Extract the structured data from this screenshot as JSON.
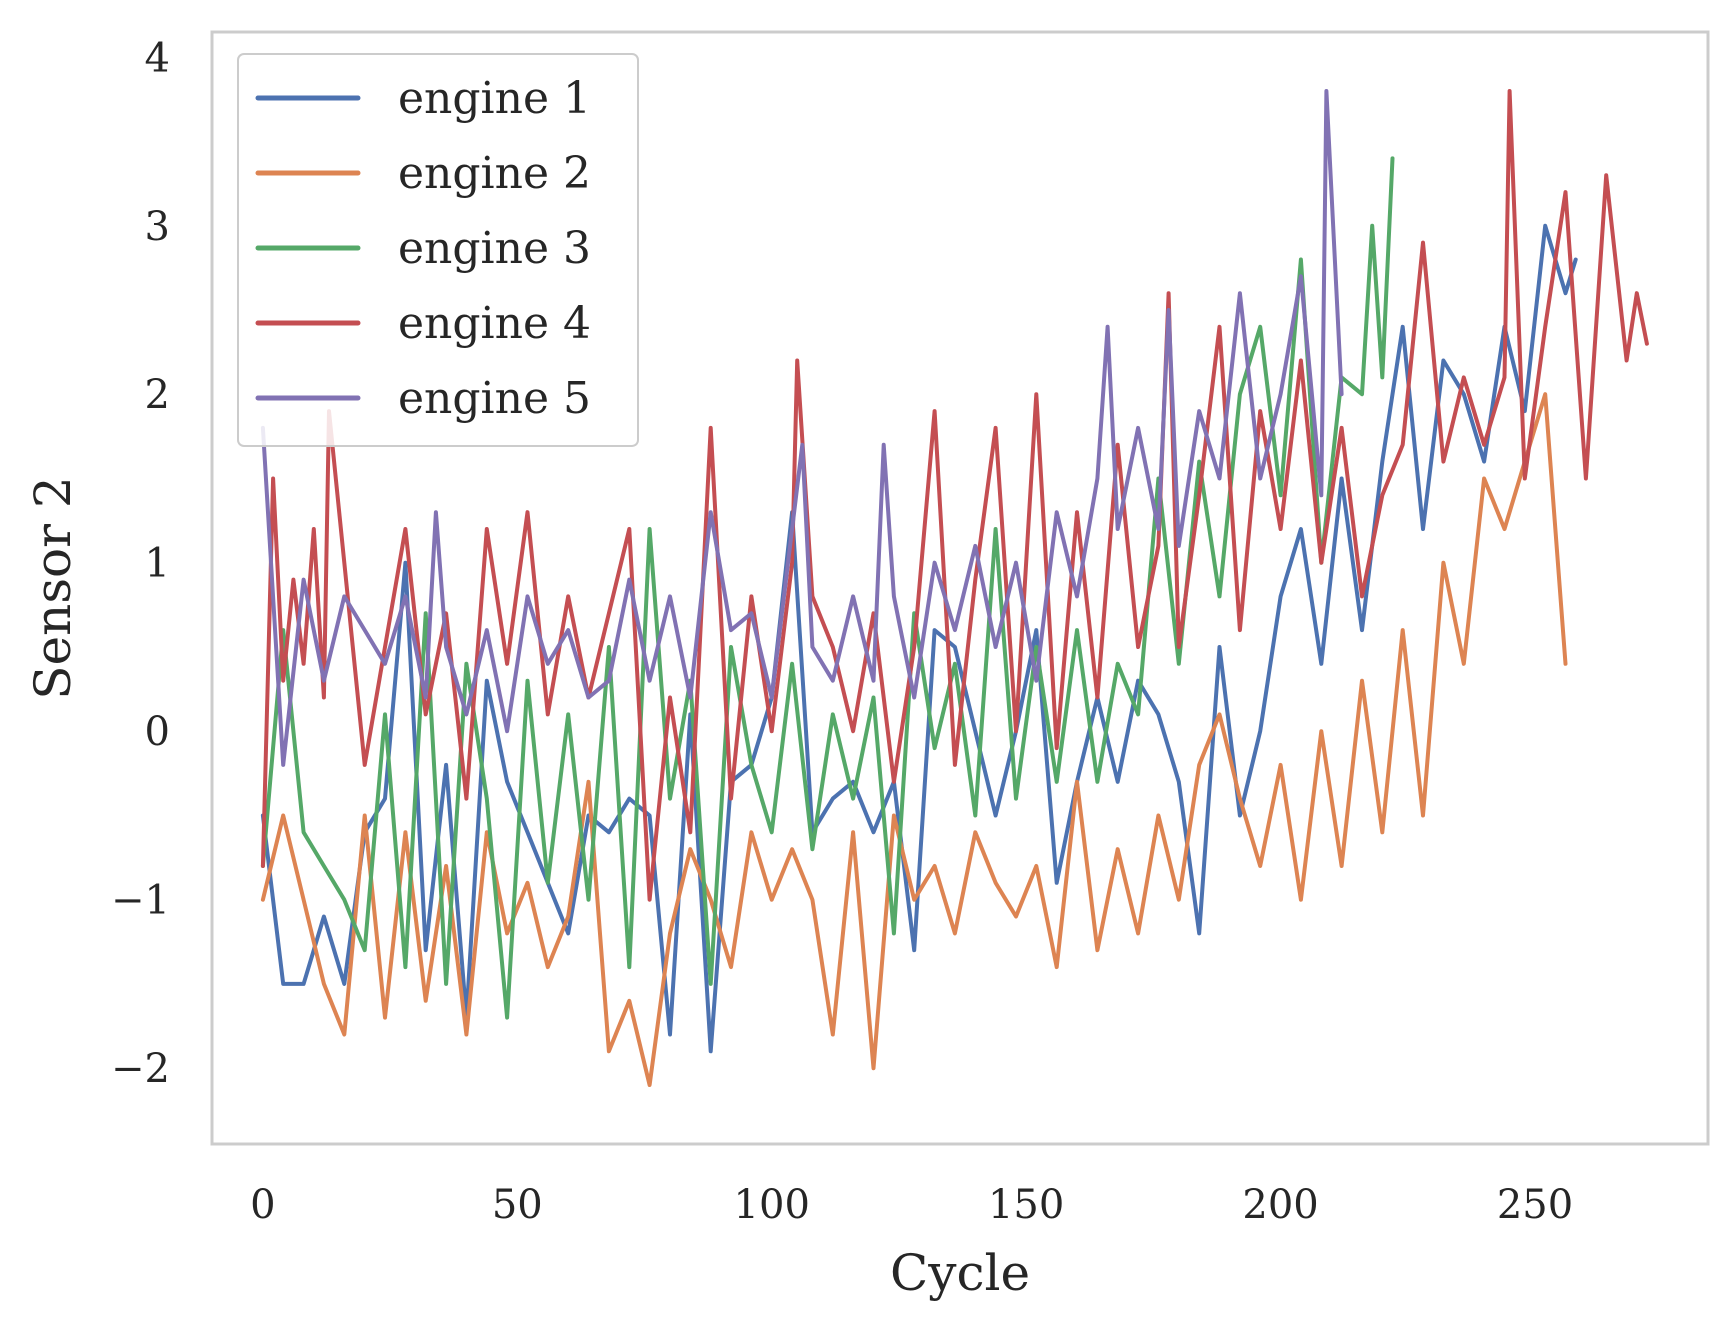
{
  "chart_data": {
    "type": "line",
    "title": "",
    "xlabel": "Cycle",
    "ylabel": "Sensor 2",
    "xlim": [
      -10,
      284
    ],
    "ylim": [
      -2.45,
      4.15
    ],
    "xticks": [
      0,
      50,
      100,
      150,
      200,
      250
    ],
    "yticks": [
      -2,
      -1,
      0,
      1,
      2,
      3,
      4
    ],
    "xtick_labels": [
      "0",
      "50",
      "100",
      "150",
      "200",
      "250"
    ],
    "ytick_labels": [
      "−2",
      "−1",
      "0",
      "1",
      "2",
      "3",
      "4"
    ],
    "grid": false,
    "legend_position": "top-left",
    "series": [
      {
        "name": "engine 1",
        "color": "#4c72b0",
        "x": [
          0,
          4,
          8,
          12,
          16,
          20,
          24,
          28,
          32,
          36,
          40,
          44,
          48,
          52,
          56,
          60,
          64,
          68,
          72,
          76,
          80,
          84,
          88,
          92,
          96,
          100,
          104,
          108,
          112,
          116,
          120,
          124,
          128,
          132,
          136,
          140,
          144,
          148,
          152,
          156,
          160,
          164,
          168,
          172,
          176,
          180,
          184,
          188,
          192,
          196,
          200,
          204,
          208,
          212,
          216,
          220,
          224,
          228,
          232,
          236,
          240,
          244,
          248,
          252,
          256,
          258
        ],
        "y": [
          -0.5,
          -1.5,
          -1.5,
          -1.1,
          -1.5,
          -0.6,
          -0.4,
          1.0,
          -1.3,
          -0.2,
          -1.7,
          0.3,
          -0.3,
          -0.6,
          -0.9,
          -1.2,
          -0.5,
          -0.6,
          -0.4,
          -0.5,
          -1.8,
          0.1,
          -1.9,
          -0.3,
          -0.2,
          0.2,
          1.3,
          -0.6,
          -0.4,
          -0.3,
          -0.6,
          -0.3,
          -1.3,
          0.6,
          0.5,
          0.0,
          -0.5,
          0.0,
          0.6,
          -0.9,
          -0.3,
          0.2,
          -0.3,
          0.3,
          0.1,
          -0.3,
          -1.2,
          0.5,
          -0.5,
          0.0,
          0.8,
          1.2,
          0.4,
          1.5,
          0.6,
          1.6,
          2.4,
          1.2,
          2.2,
          2.0,
          1.6,
          2.4,
          1.9,
          3.0,
          2.6,
          2.8
        ]
      },
      {
        "name": "engine 2",
        "color": "#dd8452",
        "x": [
          0,
          4,
          8,
          12,
          16,
          20,
          24,
          28,
          32,
          36,
          40,
          44,
          48,
          52,
          56,
          60,
          64,
          68,
          72,
          76,
          80,
          84,
          88,
          92,
          96,
          100,
          104,
          108,
          112,
          116,
          120,
          124,
          128,
          132,
          136,
          140,
          144,
          148,
          152,
          156,
          160,
          164,
          168,
          172,
          176,
          180,
          184,
          188,
          192,
          196,
          200,
          204,
          208,
          212,
          216,
          220,
          224,
          228,
          232,
          236,
          240,
          244,
          248,
          252,
          256
        ],
        "y": [
          -1.0,
          -0.5,
          -1.0,
          -1.5,
          -1.8,
          -0.5,
          -1.7,
          -0.6,
          -1.6,
          -0.8,
          -1.8,
          -0.6,
          -1.2,
          -0.9,
          -1.4,
          -1.1,
          -0.3,
          -1.9,
          -1.6,
          -2.1,
          -1.2,
          -0.7,
          -1.0,
          -1.4,
          -0.6,
          -1.0,
          -0.7,
          -1.0,
          -1.8,
          -0.6,
          -2.0,
          -0.5,
          -1.0,
          -0.8,
          -1.2,
          -0.6,
          -0.9,
          -1.1,
          -0.8,
          -1.4,
          -0.3,
          -1.3,
          -0.7,
          -1.2,
          -0.5,
          -1.0,
          -0.2,
          0.1,
          -0.4,
          -0.8,
          -0.2,
          -1.0,
          0.0,
          -0.8,
          0.3,
          -0.6,
          0.6,
          -0.5,
          1.0,
          0.4,
          1.5,
          1.2,
          1.6,
          2.0,
          0.4
        ]
      },
      {
        "name": "engine 3",
        "color": "#55a868",
        "x": [
          0,
          4,
          8,
          12,
          16,
          20,
          24,
          28,
          32,
          36,
          40,
          44,
          48,
          52,
          56,
          60,
          64,
          68,
          72,
          76,
          80,
          84,
          88,
          92,
          96,
          100,
          104,
          108,
          112,
          116,
          120,
          124,
          128,
          132,
          136,
          140,
          144,
          148,
          152,
          156,
          160,
          164,
          168,
          172,
          176,
          180,
          184,
          188,
          192,
          196,
          200,
          204,
          208,
          212,
          216,
          218,
          220,
          222
        ],
        "y": [
          -0.8,
          0.6,
          -0.6,
          -0.8,
          -1.0,
          -1.3,
          0.1,
          -1.4,
          0.7,
          -1.5,
          0.4,
          -0.4,
          -1.7,
          0.3,
          -0.9,
          0.1,
          -1.0,
          0.5,
          -1.4,
          1.2,
          -0.4,
          0.3,
          -1.5,
          0.5,
          -0.2,
          -0.6,
          0.4,
          -0.7,
          0.1,
          -0.4,
          0.2,
          -1.2,
          0.7,
          -0.1,
          0.4,
          -0.5,
          1.2,
          -0.4,
          0.5,
          -0.3,
          0.6,
          -0.3,
          0.4,
          0.1,
          1.5,
          0.4,
          1.6,
          0.8,
          2.0,
          2.4,
          1.4,
          2.8,
          1.0,
          2.1,
          2.0,
          3.0,
          2.1,
          3.4
        ]
      },
      {
        "name": "engine 4",
        "color": "#c44e52",
        "x": [
          0,
          2,
          4,
          6,
          8,
          10,
          12,
          13,
          16,
          20,
          24,
          28,
          32,
          36,
          40,
          44,
          48,
          52,
          56,
          60,
          64,
          68,
          72,
          76,
          80,
          84,
          88,
          92,
          96,
          100,
          104,
          105,
          108,
          112,
          116,
          120,
          124,
          128,
          132,
          136,
          140,
          144,
          148,
          152,
          156,
          160,
          164,
          168,
          172,
          176,
          178,
          180,
          184,
          188,
          192,
          196,
          200,
          204,
          208,
          212,
          216,
          220,
          224,
          228,
          232,
          236,
          240,
          244,
          245,
          248,
          252,
          256,
          260,
          264,
          268,
          270,
          272
        ],
        "y": [
          -0.8,
          1.5,
          0.3,
          0.9,
          0.4,
          1.2,
          0.2,
          1.9,
          1.0,
          -0.2,
          0.5,
          1.2,
          0.1,
          0.7,
          -0.4,
          1.2,
          0.4,
          1.3,
          0.1,
          0.8,
          0.2,
          0.7,
          1.2,
          -1.0,
          0.2,
          -0.6,
          1.8,
          -0.4,
          0.8,
          0.0,
          1.0,
          2.2,
          0.8,
          0.5,
          0.0,
          0.7,
          -0.3,
          0.5,
          1.9,
          -0.2,
          0.9,
          1.8,
          0.0,
          2.0,
          -0.1,
          1.3,
          0.2,
          1.7,
          0.5,
          1.1,
          2.6,
          0.5,
          1.4,
          2.4,
          0.6,
          1.9,
          1.2,
          2.2,
          1.0,
          1.8,
          0.8,
          1.4,
          1.7,
          2.9,
          1.6,
          2.1,
          1.7,
          2.1,
          3.8,
          1.5,
          2.4,
          3.2,
          1.5,
          3.3,
          2.2,
          2.6,
          2.3
        ]
      },
      {
        "name": "engine 5",
        "color": "#8172b3",
        "x": [
          0,
          4,
          8,
          12,
          16,
          20,
          24,
          28,
          32,
          34,
          36,
          40,
          44,
          48,
          52,
          56,
          60,
          64,
          68,
          72,
          76,
          80,
          84,
          88,
          92,
          96,
          100,
          104,
          106,
          108,
          112,
          116,
          120,
          122,
          124,
          128,
          132,
          136,
          140,
          144,
          148,
          152,
          156,
          160,
          164,
          166,
          168,
          172,
          176,
          178,
          180,
          184,
          188,
          192,
          196,
          200,
          204,
          208,
          209,
          212
        ],
        "y": [
          1.8,
          -0.2,
          0.9,
          0.3,
          0.8,
          0.6,
          0.4,
          0.8,
          0.2,
          1.3,
          0.5,
          0.1,
          0.6,
          0.0,
          0.8,
          0.4,
          0.6,
          0.2,
          0.3,
          0.9,
          0.3,
          0.8,
          0.2,
          1.3,
          0.6,
          0.7,
          0.2,
          1.2,
          1.7,
          0.5,
          0.3,
          0.8,
          0.3,
          1.7,
          0.8,
          0.2,
          1.0,
          0.6,
          1.1,
          0.5,
          1.0,
          0.3,
          1.3,
          0.8,
          1.5,
          2.4,
          1.2,
          1.8,
          1.2,
          2.5,
          1.1,
          1.9,
          1.5,
          2.6,
          1.5,
          2.0,
          2.7,
          1.4,
          3.8,
          2.0
        ]
      }
    ]
  }
}
